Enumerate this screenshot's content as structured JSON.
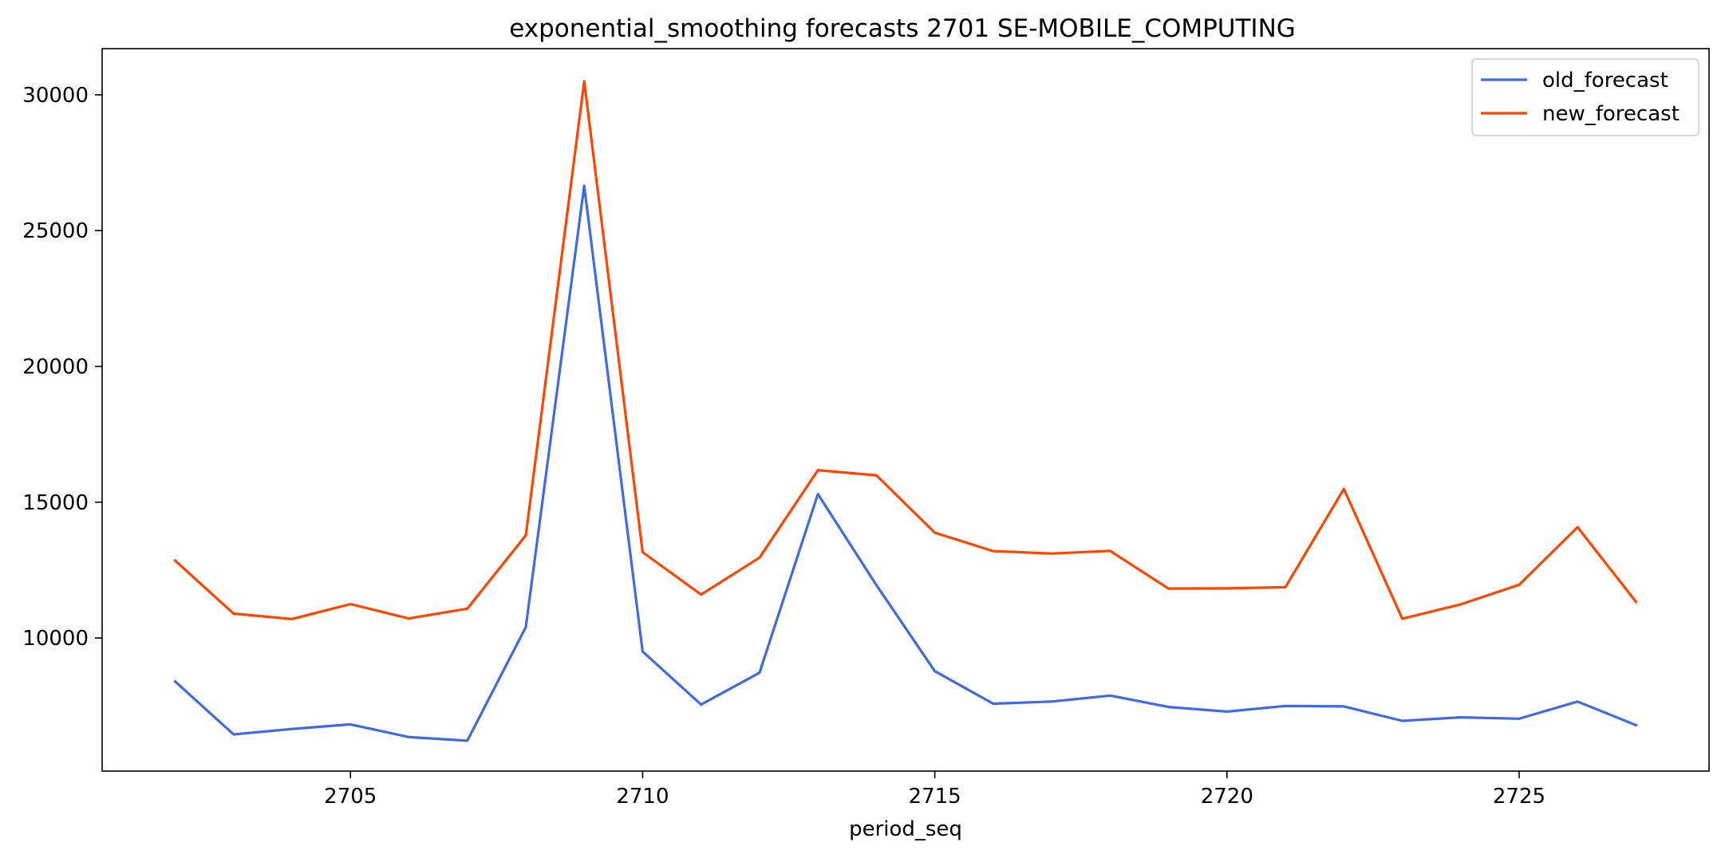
{
  "chart_data": {
    "type": "line",
    "title": "exponential_smoothing forecasts 2701 SE-MOBILE_COMPUTING",
    "xlabel": "period_seq",
    "ylabel": "",
    "x": [
      2702,
      2703,
      2704,
      2705,
      2706,
      2707,
      2708,
      2709,
      2710,
      2711,
      2712,
      2713,
      2714,
      2715,
      2716,
      2717,
      2718,
      2719,
      2720,
      2721,
      2722,
      2723,
      2724,
      2725,
      2726,
      2727
    ],
    "xlim": [
      2700.75,
      2728.25
    ],
    "ylim": [
      5100,
      31700
    ],
    "xticks": [
      2705,
      2710,
      2715,
      2720,
      2725
    ],
    "yticks": [
      10000,
      15000,
      20000,
      25000,
      30000
    ],
    "grid": false,
    "legend_position": "top-right",
    "series": [
      {
        "name": "old_forecast",
        "color": "#4169e1",
        "values": [
          8400,
          6450,
          6650,
          6820,
          6350,
          6220,
          10400,
          26650,
          9500,
          7550,
          8720,
          15300,
          11950,
          8780,
          7580,
          7660,
          7880,
          7460,
          7290,
          7500,
          7480,
          6950,
          7080,
          7030,
          7660,
          6790
        ]
      },
      {
        "name": "new_forecast",
        "color": "#ff4500",
        "values": [
          12850,
          10900,
          10700,
          11250,
          10720,
          11080,
          13780,
          30500,
          13160,
          11600,
          12960,
          16180,
          15990,
          13880,
          13200,
          13110,
          13210,
          11820,
          11830,
          11870,
          15490,
          10710,
          11240,
          11960,
          14080,
          11330
        ]
      }
    ]
  }
}
